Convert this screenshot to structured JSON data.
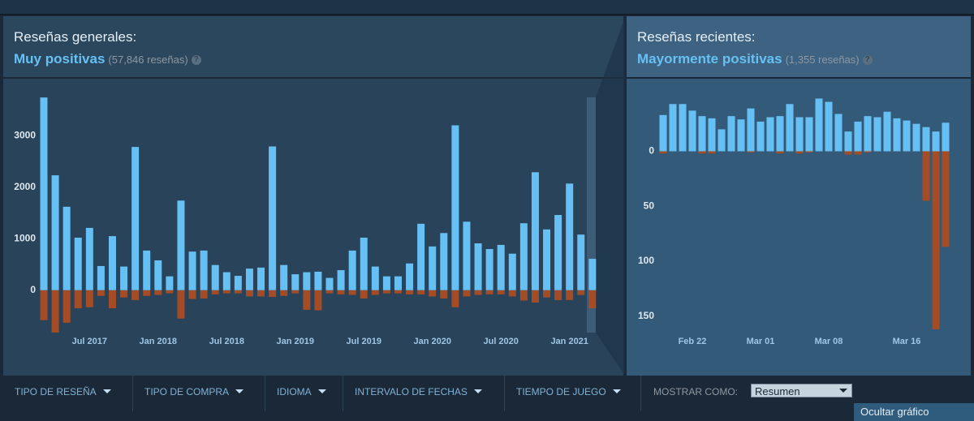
{
  "chart_data": [
    {
      "type": "bar",
      "title": "Reseñas generales:",
      "summary": "Muy positivas",
      "count": "(57,846 reseñas)",
      "help": "?",
      "categories": [
        null,
        null,
        null,
        null,
        "Jul 2017",
        null,
        null,
        null,
        null,
        null,
        "Jan 2018",
        null,
        null,
        null,
        null,
        null,
        "Jul 2018",
        null,
        null,
        null,
        null,
        null,
        "Jan 2019",
        null,
        null,
        null,
        null,
        null,
        "Jul 2019",
        null,
        null,
        null,
        null,
        null,
        "Jan 2020",
        null,
        null,
        null,
        null,
        null,
        "Jul 2020",
        null,
        null,
        null,
        null,
        null,
        "Jan 2021",
        null,
        null
      ],
      "series": [
        {
          "color": "#66c0f4",
          "values": [
            3740,
            2230,
            1620,
            1020,
            1210,
            470,
            1050,
            460,
            2780,
            770,
            580,
            270,
            1740,
            750,
            770,
            490,
            350,
            280,
            420,
            440,
            2790,
            490,
            310,
            350,
            360,
            240,
            390,
            770,
            1020,
            460,
            270,
            270,
            520,
            1290,
            850,
            1110,
            3200,
            1330,
            910,
            800,
            880,
            710,
            1300,
            2290,
            1180,
            1460,
            2070,
            1080,
            610
          ]
        },
        {
          "color": "#a34c25",
          "values": [
            -580,
            -820,
            -630,
            -350,
            -330,
            -110,
            -350,
            -140,
            -190,
            -110,
            -90,
            -60,
            -550,
            -170,
            -160,
            -80,
            -60,
            -60,
            -120,
            -120,
            -130,
            -110,
            -60,
            -380,
            -390,
            -60,
            -80,
            -90,
            -160,
            -90,
            -60,
            -60,
            -80,
            -80,
            -120,
            -160,
            -330,
            -120,
            -90,
            -80,
            -80,
            -120,
            -200,
            -240,
            -140,
            -190,
            -190,
            -90,
            -350
          ]
        }
      ],
      "ylim": [
        -900,
        3900
      ],
      "yticks": [
        0,
        1000,
        2000,
        3000
      ]
    },
    {
      "type": "bar",
      "title": "Reseñas recientes:",
      "summary": "Mayormente positivas",
      "count": "(1,355 reseñas)",
      "help": "?",
      "categories": [
        null,
        null,
        null,
        "Feb 22",
        null,
        null,
        null,
        null,
        null,
        null,
        "Mar 01",
        null,
        null,
        null,
        null,
        null,
        null,
        "Mar 08",
        null,
        null,
        null,
        null,
        null,
        null,
        null,
        "Mar 16",
        null,
        null,
        null,
        null
      ],
      "series": [
        {
          "color": "#66c0f4",
          "values": [
            33,
            43,
            43,
            37,
            32,
            30,
            20,
            32,
            29,
            39,
            27,
            31,
            32,
            43,
            31,
            31,
            48,
            45,
            34,
            18,
            27,
            32,
            31,
            36,
            30,
            28,
            25,
            22,
            18,
            26
          ]
        },
        {
          "color": "#a34c25",
          "values": [
            -2,
            0,
            0,
            0,
            -2,
            -2,
            0,
            0,
            0,
            -1,
            0,
            0,
            -2,
            0,
            -2,
            -1,
            0,
            0,
            0,
            -3,
            -3,
            -1,
            0,
            0,
            0,
            0,
            0,
            -45,
            -162,
            -87
          ]
        }
      ],
      "ylim": [
        -165,
        55
      ],
      "yticks": [
        0,
        {
          "value": -50,
          "label": "50"
        },
        {
          "value": -100,
          "label": "100"
        },
        {
          "value": -150,
          "label": "150"
        }
      ]
    }
  ],
  "filters": [
    "TIPO DE RESEÑA",
    "TIPO DE COMPRA",
    "IDIOMA",
    "INTERVALO DE FECHAS",
    "TIEMPO DE JUEGO"
  ],
  "display_label": "MOSTRAR COMO:",
  "display_option": "Resumen",
  "hide_button": "Ocultar gráfico"
}
